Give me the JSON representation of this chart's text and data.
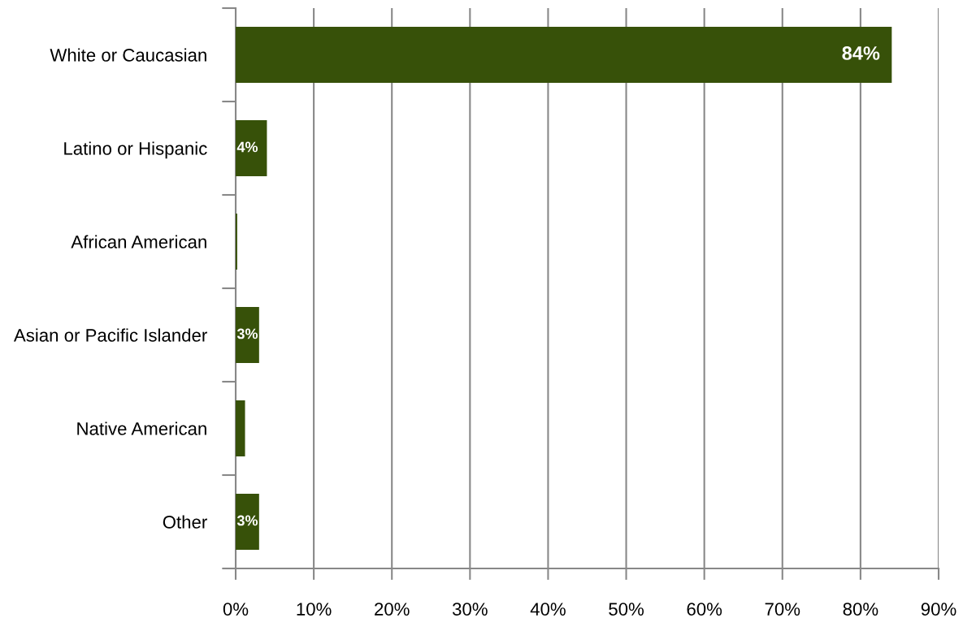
{
  "chart_data": {
    "type": "bar",
    "orientation": "horizontal",
    "categories": [
      "White or Caucasian",
      "Latino or Hispanic",
      "African American",
      "Asian or Pacific Islander",
      "Native American",
      "Other"
    ],
    "values": [
      84,
      4.0,
      0.2,
      3,
      1.2,
      3
    ],
    "value_labels": [
      "84%",
      "4%",
      null,
      "3%",
      null,
      "3%"
    ],
    "color": "#375109",
    "xlim": [
      0,
      90
    ],
    "xticks": [
      {
        "value": 0,
        "label": "0%"
      },
      {
        "value": 10,
        "label": "10%"
      },
      {
        "value": 20,
        "label": "20%"
      },
      {
        "value": 30,
        "label": "30%"
      },
      {
        "value": 40,
        "label": "40%"
      },
      {
        "value": 50,
        "label": "50%"
      },
      {
        "value": 60,
        "label": "60%"
      },
      {
        "value": 70,
        "label": "70%"
      },
      {
        "value": 80,
        "label": "80%"
      },
      {
        "value": 90,
        "label": "90%"
      }
    ],
    "grid": "x"
  }
}
